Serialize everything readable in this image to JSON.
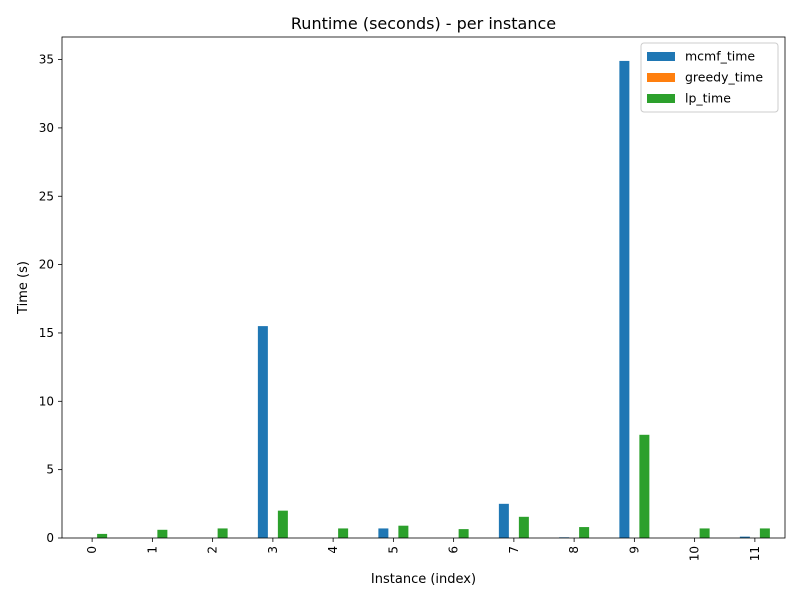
{
  "chart_data": {
    "type": "bar",
    "title": "Runtime (seconds) - per instance",
    "xlabel": "Instance (index)",
    "ylabel": "Time (s)",
    "categories": [
      "0",
      "1",
      "2",
      "3",
      "4",
      "5",
      "6",
      "7",
      "8",
      "9",
      "10",
      "11"
    ],
    "series": [
      {
        "name": "mcmf_time",
        "color": "#1f77b4",
        "values": [
          0.0,
          0.0,
          0.0,
          15.5,
          0.0,
          0.7,
          0.0,
          2.5,
          0.05,
          34.9,
          0.0,
          0.1
        ]
      },
      {
        "name": "greedy_time",
        "color": "#ff7f0e",
        "values": [
          0.0,
          0.0,
          0.0,
          0.0,
          0.0,
          0.0,
          0.0,
          0.0,
          0.0,
          0.0,
          0.0,
          0.0
        ]
      },
      {
        "name": "lp_time",
        "color": "#2ca02c",
        "values": [
          0.3,
          0.6,
          0.7,
          2.0,
          0.7,
          0.9,
          0.65,
          1.55,
          0.8,
          7.55,
          0.7,
          0.7
        ]
      }
    ],
    "ylim": [
      0,
      36.65
    ],
    "yticks": [
      0,
      5,
      10,
      15,
      20,
      25,
      30,
      35
    ],
    "legend_position": "top-right",
    "grid": false
  }
}
